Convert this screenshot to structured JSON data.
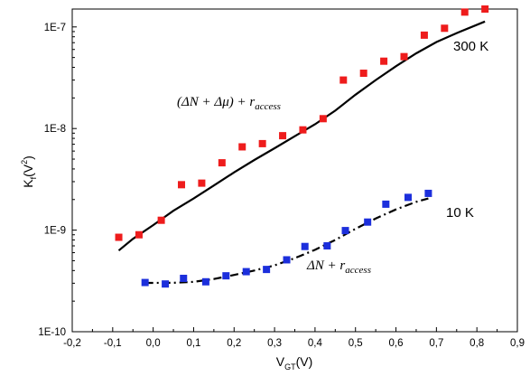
{
  "chart_data": {
    "type": "scatter",
    "xlabel": {
      "main": "V",
      "sub": "GT",
      "unit": "(V)"
    },
    "ylabel": {
      "main": "K",
      "sub": "f",
      "unit": "(V",
      "sup": "2",
      "close": ")"
    },
    "xlim": [
      -0.2,
      0.9
    ],
    "ylim": [
      1e-10,
      1.5e-07
    ],
    "yscale": "log",
    "x_ticks": [
      {
        "value": -0.2,
        "label": "-0,2"
      },
      {
        "value": -0.1,
        "label": "-0,1"
      },
      {
        "value": 0.0,
        "label": "0,0"
      },
      {
        "value": 0.1,
        "label": "0,1"
      },
      {
        "value": 0.2,
        "label": "0,2"
      },
      {
        "value": 0.3,
        "label": "0,3"
      },
      {
        "value": 0.4,
        "label": "0,4"
      },
      {
        "value": 0.5,
        "label": "0,5"
      },
      {
        "value": 0.6,
        "label": "0,6"
      },
      {
        "value": 0.7,
        "label": "0,7"
      },
      {
        "value": 0.8,
        "label": "0,8"
      },
      {
        "value": 0.9,
        "label": "0,9"
      }
    ],
    "y_ticks": [
      {
        "value": 1e-10,
        "label": "1E-10"
      },
      {
        "value": 1e-09,
        "label": "1E-9"
      },
      {
        "value": 1e-08,
        "label": "1E-8"
      },
      {
        "value": 1e-07,
        "label": "1E-7"
      }
    ],
    "grid": false,
    "series": [
      {
        "name": "300 K",
        "color": "#ee1c1c",
        "marker": "square",
        "points": [
          [
            -0.085,
            8.5e-10
          ],
          [
            -0.035,
            9e-10
          ],
          [
            0.02,
            1.25e-09
          ],
          [
            0.07,
            2.8e-09
          ],
          [
            0.12,
            2.9e-09
          ],
          [
            0.17,
            4.6e-09
          ],
          [
            0.22,
            6.6e-09
          ],
          [
            0.27,
            7.1e-09
          ],
          [
            0.32,
            8.5e-09
          ],
          [
            0.37,
            9.7e-09
          ],
          [
            0.42,
            1.25e-08
          ],
          [
            0.47,
            3e-08
          ],
          [
            0.52,
            3.5e-08
          ],
          [
            0.57,
            4.6e-08
          ],
          [
            0.62,
            5.1e-08
          ],
          [
            0.67,
            8.3e-08
          ],
          [
            0.72,
            9.7e-08
          ],
          [
            0.77,
            1.4e-07
          ],
          [
            0.82,
            1.5e-07
          ]
        ]
      },
      {
        "name": "10 K",
        "color": "#1c2fdc",
        "marker": "square",
        "points": [
          [
            -0.02,
            3.05e-10
          ],
          [
            0.03,
            2.95e-10
          ],
          [
            0.075,
            3.35e-10
          ],
          [
            0.13,
            3.1e-10
          ],
          [
            0.18,
            3.55e-10
          ],
          [
            0.23,
            3.9e-10
          ],
          [
            0.28,
            4.1e-10
          ],
          [
            0.33,
            5.1e-10
          ],
          [
            0.375,
            6.9e-10
          ],
          [
            0.43,
            7e-10
          ],
          [
            0.475,
            9.9e-10
          ],
          [
            0.53,
            1.2e-09
          ],
          [
            0.575,
            1.8e-09
          ],
          [
            0.63,
            2.1e-09
          ],
          [
            0.68,
            2.3e-09
          ]
        ]
      }
    ],
    "fits": [
      {
        "style": "solid",
        "color": "#000000",
        "points": [
          [
            -0.085,
            6.3e-10
          ],
          [
            -0.05,
            8.2e-10
          ],
          [
            0.0,
            1.12e-09
          ],
          [
            0.05,
            1.55e-09
          ],
          [
            0.1,
            2.05e-09
          ],
          [
            0.15,
            2.75e-09
          ],
          [
            0.2,
            3.7e-09
          ],
          [
            0.25,
            4.9e-09
          ],
          [
            0.3,
            6.4e-09
          ],
          [
            0.35,
            8.4e-09
          ],
          [
            0.4,
            1.1e-08
          ],
          [
            0.45,
            1.5e-08
          ],
          [
            0.5,
            2.15e-08
          ],
          [
            0.55,
            3e-08
          ],
          [
            0.6,
            4.1e-08
          ],
          [
            0.65,
            5.5e-08
          ],
          [
            0.7,
            7.1e-08
          ],
          [
            0.75,
            8.7e-08
          ],
          [
            0.82,
            1.13e-07
          ]
        ]
      },
      {
        "style": "dash-dot",
        "color": "#000000",
        "points": [
          [
            -0.02,
            3.02e-10
          ],
          [
            0.05,
            3.03e-10
          ],
          [
            0.1,
            3.1e-10
          ],
          [
            0.15,
            3.3e-10
          ],
          [
            0.2,
            3.62e-10
          ],
          [
            0.25,
            4e-10
          ],
          [
            0.3,
            4.5e-10
          ],
          [
            0.35,
            5.3e-10
          ],
          [
            0.4,
            6.4e-10
          ],
          [
            0.45,
            8e-10
          ],
          [
            0.5,
            1.03e-09
          ],
          [
            0.55,
            1.3e-09
          ],
          [
            0.6,
            1.6e-09
          ],
          [
            0.65,
            1.9e-09
          ],
          [
            0.68,
            2.05e-09
          ]
        ]
      }
    ],
    "annotations": [
      {
        "id": "label-300k",
        "text": "300 K"
      },
      {
        "id": "label-10k",
        "text": "10 K"
      },
      {
        "id": "formula-300k",
        "text": "(ΔN + Δμ) + r",
        "sub": "access"
      },
      {
        "id": "formula-10k",
        "text": "ΔN + r",
        "sub": "access"
      }
    ]
  }
}
